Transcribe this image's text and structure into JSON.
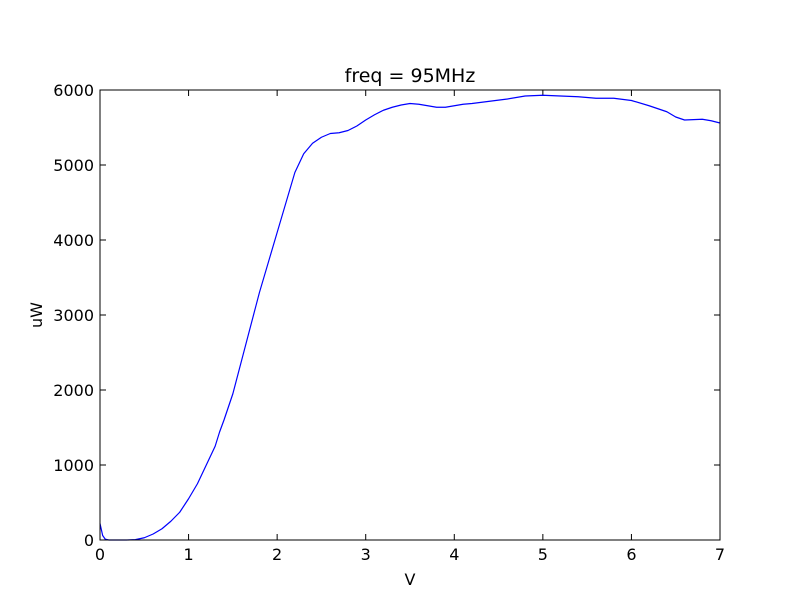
{
  "chart_data": {
    "type": "line",
    "title": "freq = 95MHz",
    "xlabel": "V",
    "ylabel": "uW",
    "xlim": [
      0,
      7
    ],
    "ylim": [
      0,
      6000
    ],
    "xticks": [
      "0",
      "1",
      "2",
      "3",
      "4",
      "5",
      "6",
      "7"
    ],
    "yticks": [
      "0",
      "1000",
      "2000",
      "3000",
      "4000",
      "5000",
      "6000"
    ],
    "grid": false,
    "legend": "none",
    "series": [
      {
        "color": "#0000ff",
        "x": [
          0,
          0.03,
          0.06,
          0.1,
          0.2,
          0.3,
          0.4,
          0.5,
          0.6,
          0.7,
          0.8,
          0.9,
          1.0,
          1.1,
          1.2,
          1.3,
          1.35,
          1.4,
          1.5,
          1.6,
          1.7,
          1.8,
          1.9,
          2.0,
          2.1,
          2.2,
          2.3,
          2.4,
          2.5,
          2.6,
          2.7,
          2.8,
          2.9,
          3.0,
          3.1,
          3.2,
          3.3,
          3.4,
          3.5,
          3.6,
          3.7,
          3.8,
          3.9,
          4.0,
          4.1,
          4.2,
          4.4,
          4.6,
          4.8,
          5.0,
          5.2,
          5.4,
          5.6,
          5.8,
          6.0,
          6.2,
          6.4,
          6.5,
          6.6,
          6.8,
          6.9,
          7.0
        ],
        "y": [
          220,
          60,
          10,
          0,
          0,
          0,
          5,
          30,
          80,
          150,
          250,
          370,
          550,
          750,
          1000,
          1250,
          1440,
          1600,
          1950,
          2400,
          2850,
          3300,
          3700,
          4100,
          4500,
          4900,
          5150,
          5290,
          5370,
          5420,
          5430,
          5460,
          5520,
          5600,
          5670,
          5730,
          5770,
          5800,
          5820,
          5810,
          5790,
          5770,
          5770,
          5790,
          5810,
          5820,
          5850,
          5880,
          5920,
          5930,
          5920,
          5910,
          5890,
          5890,
          5860,
          5790,
          5710,
          5640,
          5600,
          5610,
          5590,
          5560
        ]
      }
    ]
  }
}
